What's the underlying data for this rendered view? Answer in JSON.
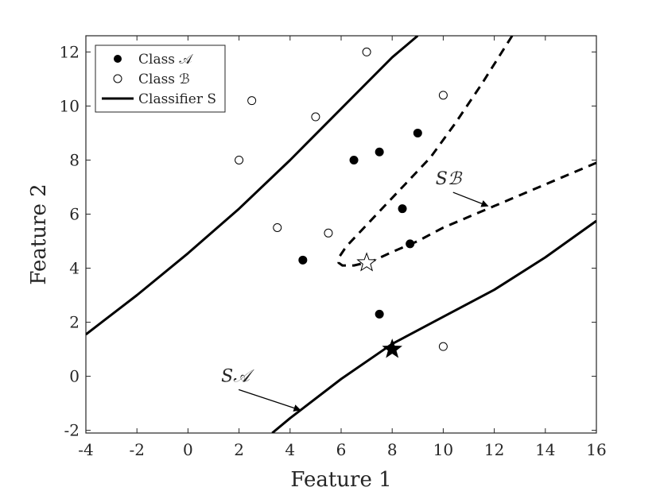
{
  "chart_data": {
    "type": "scatter",
    "xlabel": "Feature 1",
    "ylabel": "Feature 2",
    "xlim": [
      -4,
      16
    ],
    "ylim": [
      -2.1,
      12.6
    ],
    "xticks": [
      "-4",
      "-2",
      "0",
      "2",
      "4",
      "6",
      "8",
      "10",
      "12",
      "14",
      "16"
    ],
    "yticks": [
      "-2",
      "0",
      "2",
      "4",
      "6",
      "8",
      "10",
      "12"
    ],
    "grid": false,
    "legend": {
      "placement": "top-left",
      "entries": [
        "Class 𝒜",
        "Class ℬ",
        "Classifier S"
      ]
    },
    "series": [
      {
        "name": "Class 𝒜",
        "marker": "filled-circle",
        "color": "#000000",
        "points": [
          [
            4.5,
            4.3
          ],
          [
            6.5,
            8.0
          ],
          [
            7.5,
            8.3
          ],
          [
            9.0,
            9.0
          ],
          [
            8.4,
            6.2
          ],
          [
            8.7,
            4.9
          ],
          [
            7.5,
            2.3
          ]
        ]
      },
      {
        "name": "Class ℬ",
        "marker": "open-circle",
        "color": "#000000",
        "points": [
          [
            2.0,
            8.0
          ],
          [
            2.5,
            10.2
          ],
          [
            5.0,
            9.6
          ],
          [
            7.0,
            12.0
          ],
          [
            10.0,
            10.4
          ],
          [
            3.5,
            5.5
          ],
          [
            5.5,
            5.3
          ],
          [
            10.0,
            1.1
          ]
        ]
      },
      {
        "name": "Classifier S",
        "style": "solid",
        "color": "#000000",
        "points": [
          [
            -4.0,
            1.55
          ],
          [
            -2.0,
            3.0
          ],
          [
            0.0,
            4.55
          ],
          [
            2.0,
            6.2
          ],
          [
            4.0,
            8.0
          ],
          [
            6.0,
            9.9
          ],
          [
            8.0,
            11.8
          ],
          [
            9.0,
            12.6
          ]
        ]
      },
      {
        "name": "Classifier S (lower branch)",
        "style": "solid",
        "color": "#000000",
        "points": [
          [
            3.3,
            -2.1
          ],
          [
            4.0,
            -1.55
          ],
          [
            6.0,
            -0.1
          ],
          [
            8.0,
            1.2
          ],
          [
            10.0,
            2.2
          ],
          [
            12.0,
            3.2
          ],
          [
            14.0,
            4.4
          ],
          [
            16.0,
            5.75
          ]
        ]
      },
      {
        "name": "Dashed boundary",
        "style": "dashed",
        "color": "#000000",
        "points": [
          [
            12.7,
            12.6
          ],
          [
            11.5,
            10.8
          ],
          [
            10.5,
            9.4
          ],
          [
            9.5,
            8.1
          ],
          [
            8.5,
            7.1
          ],
          [
            7.5,
            6.1
          ],
          [
            6.8,
            5.4
          ],
          [
            6.2,
            4.8
          ],
          [
            5.95,
            4.45
          ],
          [
            5.9,
            4.2
          ],
          [
            6.05,
            4.1
          ],
          [
            6.5,
            4.1
          ],
          [
            7.2,
            4.25
          ],
          [
            8.0,
            4.6
          ],
          [
            9.0,
            5.0
          ],
          [
            10.0,
            5.5
          ],
          [
            11.0,
            5.9
          ],
          [
            12.0,
            6.3
          ],
          [
            13.0,
            6.7
          ],
          [
            14.0,
            7.1
          ],
          [
            15.0,
            7.5
          ],
          [
            16.0,
            7.9
          ]
        ]
      }
    ],
    "stars": [
      {
        "x": 8.0,
        "y": 1.0,
        "fill": "#000000"
      },
      {
        "x": 7.0,
        "y": 4.2,
        "fill": "#ffffff"
      }
    ],
    "annotations": [
      {
        "text": "S𝒜",
        "label_x": 1.3,
        "label_y": -0.2,
        "arrow_to_x": 4.4,
        "arrow_to_y": -1.25
      },
      {
        "text": "Sℬ",
        "label_x": 9.7,
        "label_y": 7.1,
        "arrow_to_x": 11.75,
        "arrow_to_y": 6.3
      }
    ]
  }
}
